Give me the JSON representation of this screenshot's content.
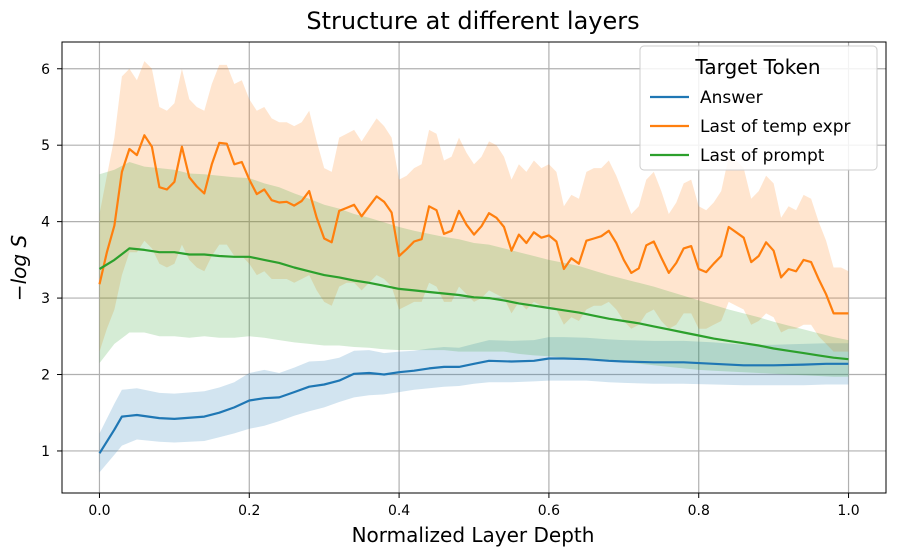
{
  "chart_data": {
    "type": "line",
    "title": "Structure at different layers",
    "xlabel": "Normalized Layer Depth",
    "ylabel": "−log S",
    "xlim": [
      -0.05,
      1.05
    ],
    "ylim": [
      0.45,
      6.35
    ],
    "xticks": [
      0.0,
      0.2,
      0.4,
      0.6,
      0.8,
      1.0
    ],
    "xtick_labels": [
      "0.0",
      "0.2",
      "0.4",
      "0.6",
      "0.8",
      "1.0"
    ],
    "yticks": [
      1,
      2,
      3,
      4,
      5,
      6
    ],
    "ytick_labels": [
      "1",
      "2",
      "3",
      "4",
      "5",
      "6"
    ],
    "grid": true,
    "legend": {
      "title": "Target Token",
      "position": "top-right"
    },
    "series": [
      {
        "name": "Answer",
        "color": "#1f77b4",
        "x": [
          0.0,
          0.02,
          0.03,
          0.05,
          0.08,
          0.1,
          0.14,
          0.16,
          0.18,
          0.2,
          0.22,
          0.24,
          0.26,
          0.28,
          0.3,
          0.32,
          0.34,
          0.36,
          0.38,
          0.4,
          0.42,
          0.44,
          0.46,
          0.48,
          0.5,
          0.52,
          0.55,
          0.58,
          0.6,
          0.62,
          0.65,
          0.68,
          0.7,
          0.74,
          0.78,
          0.82,
          0.86,
          0.9,
          0.94,
          0.97,
          1.0
        ],
        "y": [
          0.97,
          1.28,
          1.45,
          1.47,
          1.43,
          1.42,
          1.45,
          1.5,
          1.57,
          1.66,
          1.69,
          1.7,
          1.77,
          1.84,
          1.87,
          1.92,
          2.01,
          2.02,
          2.0,
          2.03,
          2.05,
          2.08,
          2.1,
          2.1,
          2.14,
          2.18,
          2.17,
          2.18,
          2.21,
          2.21,
          2.2,
          2.18,
          2.17,
          2.16,
          2.16,
          2.14,
          2.12,
          2.12,
          2.13,
          2.14,
          2.14
        ],
        "lower": [
          0.72,
          0.95,
          1.07,
          1.15,
          1.12,
          1.11,
          1.13,
          1.18,
          1.23,
          1.29,
          1.33,
          1.39,
          1.46,
          1.52,
          1.57,
          1.64,
          1.7,
          1.73,
          1.74,
          1.77,
          1.8,
          1.82,
          1.84,
          1.85,
          1.88,
          1.9,
          1.9,
          1.91,
          1.92,
          1.92,
          1.92,
          1.9,
          1.89,
          1.88,
          1.88,
          1.87,
          1.86,
          1.86,
          1.86,
          1.87,
          1.87
        ],
        "upper": [
          1.23,
          1.62,
          1.8,
          1.82,
          1.76,
          1.75,
          1.78,
          1.83,
          1.9,
          2.02,
          2.06,
          2.02,
          2.09,
          2.17,
          2.18,
          2.22,
          2.31,
          2.32,
          2.28,
          2.3,
          2.31,
          2.34,
          2.36,
          2.35,
          2.4,
          2.45,
          2.44,
          2.45,
          2.49,
          2.49,
          2.48,
          2.46,
          2.45,
          2.44,
          2.44,
          2.42,
          2.39,
          2.39,
          2.4,
          2.41,
          2.41
        ]
      },
      {
        "name": "Last of temp expr",
        "color": "#ff7f0e",
        "x": [
          0.0,
          0.01,
          0.02,
          0.03,
          0.04,
          0.05,
          0.06,
          0.07,
          0.08,
          0.09,
          0.1,
          0.11,
          0.12,
          0.13,
          0.14,
          0.15,
          0.16,
          0.17,
          0.18,
          0.19,
          0.2,
          0.21,
          0.22,
          0.23,
          0.24,
          0.25,
          0.26,
          0.27,
          0.28,
          0.29,
          0.3,
          0.31,
          0.32,
          0.33,
          0.34,
          0.35,
          0.36,
          0.37,
          0.38,
          0.39,
          0.4,
          0.41,
          0.42,
          0.43,
          0.44,
          0.45,
          0.46,
          0.47,
          0.48,
          0.49,
          0.5,
          0.51,
          0.52,
          0.53,
          0.54,
          0.55,
          0.56,
          0.57,
          0.58,
          0.59,
          0.6,
          0.61,
          0.62,
          0.63,
          0.64,
          0.65,
          0.66,
          0.67,
          0.68,
          0.69,
          0.7,
          0.71,
          0.72,
          0.73,
          0.74,
          0.75,
          0.76,
          0.77,
          0.78,
          0.79,
          0.8,
          0.81,
          0.82,
          0.83,
          0.84,
          0.85,
          0.86,
          0.87,
          0.88,
          0.89,
          0.9,
          0.91,
          0.92,
          0.93,
          0.94,
          0.95,
          0.96,
          0.97,
          0.98,
          0.99,
          1.0
        ],
        "y": [
          3.18,
          3.6,
          3.95,
          4.65,
          4.95,
          4.87,
          5.13,
          4.98,
          4.45,
          4.42,
          4.52,
          4.98,
          4.58,
          4.46,
          4.37,
          4.75,
          5.03,
          5.02,
          4.75,
          4.78,
          4.55,
          4.36,
          4.42,
          4.28,
          4.25,
          4.26,
          4.21,
          4.27,
          4.4,
          4.05,
          3.78,
          3.73,
          4.14,
          4.18,
          4.22,
          4.07,
          4.2,
          4.33,
          4.26,
          4.12,
          3.55,
          3.64,
          3.74,
          3.77,
          4.2,
          4.15,
          3.84,
          3.88,
          4.14,
          3.96,
          3.83,
          3.94,
          4.11,
          4.05,
          3.93,
          3.62,
          3.83,
          3.72,
          3.86,
          3.79,
          3.82,
          3.74,
          3.38,
          3.52,
          3.45,
          3.75,
          3.78,
          3.81,
          3.88,
          3.72,
          3.5,
          3.33,
          3.39,
          3.69,
          3.74,
          3.53,
          3.33,
          3.46,
          3.65,
          3.68,
          3.38,
          3.34,
          3.45,
          3.55,
          3.93,
          3.86,
          3.79,
          3.47,
          3.55,
          3.73,
          3.62,
          3.27,
          3.38,
          3.35,
          3.5,
          3.47,
          3.25,
          3.05,
          2.8,
          2.8,
          2.8
        ],
        "lower": [
          2.3,
          2.6,
          2.85,
          3.3,
          3.6,
          3.6,
          3.75,
          3.65,
          3.45,
          3.4,
          3.45,
          3.7,
          3.5,
          3.4,
          3.35,
          3.55,
          3.7,
          3.7,
          3.55,
          3.55,
          3.45,
          3.3,
          3.35,
          3.25,
          3.25,
          3.25,
          3.2,
          3.25,
          3.3,
          3.1,
          2.95,
          2.9,
          3.15,
          3.2,
          3.2,
          3.1,
          3.2,
          3.3,
          3.25,
          3.15,
          2.85,
          2.9,
          2.95,
          2.95,
          3.2,
          3.15,
          2.95,
          2.95,
          3.15,
          3.05,
          2.95,
          3.0,
          3.1,
          3.05,
          3.0,
          2.8,
          2.95,
          2.85,
          2.95,
          2.9,
          2.9,
          2.85,
          2.65,
          2.75,
          2.7,
          2.85,
          2.9,
          2.9,
          2.95,
          2.85,
          2.7,
          2.6,
          2.65,
          2.8,
          2.85,
          2.7,
          2.6,
          2.65,
          2.8,
          2.8,
          2.6,
          2.6,
          2.65,
          2.7,
          2.95,
          2.9,
          2.85,
          2.65,
          2.7,
          2.8,
          2.75,
          2.55,
          2.6,
          2.6,
          2.65,
          2.65,
          2.5,
          2.4,
          2.3,
          2.3,
          2.3
        ],
        "upper": [
          4.1,
          4.6,
          5.1,
          5.9,
          6.0,
          5.85,
          6.1,
          6.0,
          5.5,
          5.45,
          5.55,
          6.0,
          5.6,
          5.5,
          5.45,
          5.8,
          6.05,
          6.05,
          5.8,
          5.85,
          5.6,
          5.45,
          5.5,
          5.35,
          5.3,
          5.3,
          5.25,
          5.3,
          5.45,
          5.05,
          4.7,
          4.65,
          5.1,
          5.15,
          5.2,
          5.05,
          5.2,
          5.35,
          5.25,
          5.1,
          4.55,
          4.6,
          4.7,
          4.75,
          5.2,
          5.15,
          4.8,
          4.85,
          5.1,
          4.9,
          4.75,
          4.85,
          5.05,
          5.0,
          4.85,
          4.55,
          4.75,
          4.65,
          4.8,
          4.7,
          4.75,
          4.65,
          4.2,
          4.35,
          4.3,
          4.65,
          4.7,
          4.7,
          4.8,
          4.6,
          4.35,
          4.1,
          4.2,
          4.55,
          4.65,
          4.4,
          4.1,
          4.25,
          4.5,
          4.55,
          4.2,
          4.15,
          4.25,
          4.4,
          4.85,
          4.8,
          4.7,
          4.3,
          4.4,
          4.6,
          4.5,
          4.05,
          4.2,
          4.15,
          4.35,
          4.3,
          4.0,
          3.75,
          3.4,
          3.4,
          3.35
        ]
      },
      {
        "name": "Last of prompt",
        "color": "#2ca02c",
        "x": [
          0.0,
          0.02,
          0.04,
          0.06,
          0.08,
          0.1,
          0.12,
          0.14,
          0.16,
          0.18,
          0.2,
          0.22,
          0.24,
          0.26,
          0.28,
          0.3,
          0.32,
          0.34,
          0.36,
          0.38,
          0.4,
          0.42,
          0.44,
          0.46,
          0.48,
          0.5,
          0.52,
          0.54,
          0.56,
          0.58,
          0.6,
          0.62,
          0.64,
          0.66,
          0.68,
          0.7,
          0.72,
          0.74,
          0.76,
          0.78,
          0.8,
          0.82,
          0.84,
          0.86,
          0.88,
          0.9,
          0.92,
          0.94,
          0.96,
          0.98,
          1.0
        ],
        "y": [
          3.38,
          3.5,
          3.65,
          3.63,
          3.6,
          3.6,
          3.57,
          3.57,
          3.55,
          3.54,
          3.54,
          3.5,
          3.46,
          3.4,
          3.35,
          3.3,
          3.27,
          3.23,
          3.2,
          3.16,
          3.12,
          3.1,
          3.08,
          3.06,
          3.04,
          3.01,
          3.0,
          2.97,
          2.93,
          2.9,
          2.87,
          2.84,
          2.81,
          2.77,
          2.73,
          2.7,
          2.67,
          2.63,
          2.59,
          2.55,
          2.51,
          2.47,
          2.44,
          2.41,
          2.38,
          2.34,
          2.31,
          2.28,
          2.25,
          2.22,
          2.2
        ],
        "lower": [
          2.15,
          2.4,
          2.55,
          2.55,
          2.5,
          2.5,
          2.48,
          2.5,
          2.48,
          2.48,
          2.5,
          2.48,
          2.45,
          2.42,
          2.4,
          2.38,
          2.38,
          2.36,
          2.35,
          2.33,
          2.32,
          2.32,
          2.32,
          2.32,
          2.3,
          2.3,
          2.3,
          2.3,
          2.27,
          2.25,
          2.24,
          2.22,
          2.21,
          2.19,
          2.17,
          2.16,
          2.14,
          2.12,
          2.1,
          2.08,
          2.06,
          2.05,
          2.04,
          2.03,
          2.02,
          2.01,
          2.0,
          1.99,
          1.98,
          1.97,
          1.97
        ],
        "upper": [
          4.62,
          4.68,
          4.78,
          4.72,
          4.7,
          4.68,
          4.63,
          4.62,
          4.6,
          4.58,
          4.57,
          4.5,
          4.45,
          4.37,
          4.3,
          4.22,
          4.17,
          4.1,
          4.05,
          3.99,
          3.93,
          3.88,
          3.84,
          3.8,
          3.77,
          3.72,
          3.7,
          3.65,
          3.6,
          3.55,
          3.5,
          3.46,
          3.42,
          3.36,
          3.3,
          3.25,
          3.2,
          3.15,
          3.09,
          3.03,
          2.97,
          2.91,
          2.85,
          2.8,
          2.75,
          2.69,
          2.64,
          2.59,
          2.54,
          2.49,
          2.45
        ]
      }
    ]
  }
}
